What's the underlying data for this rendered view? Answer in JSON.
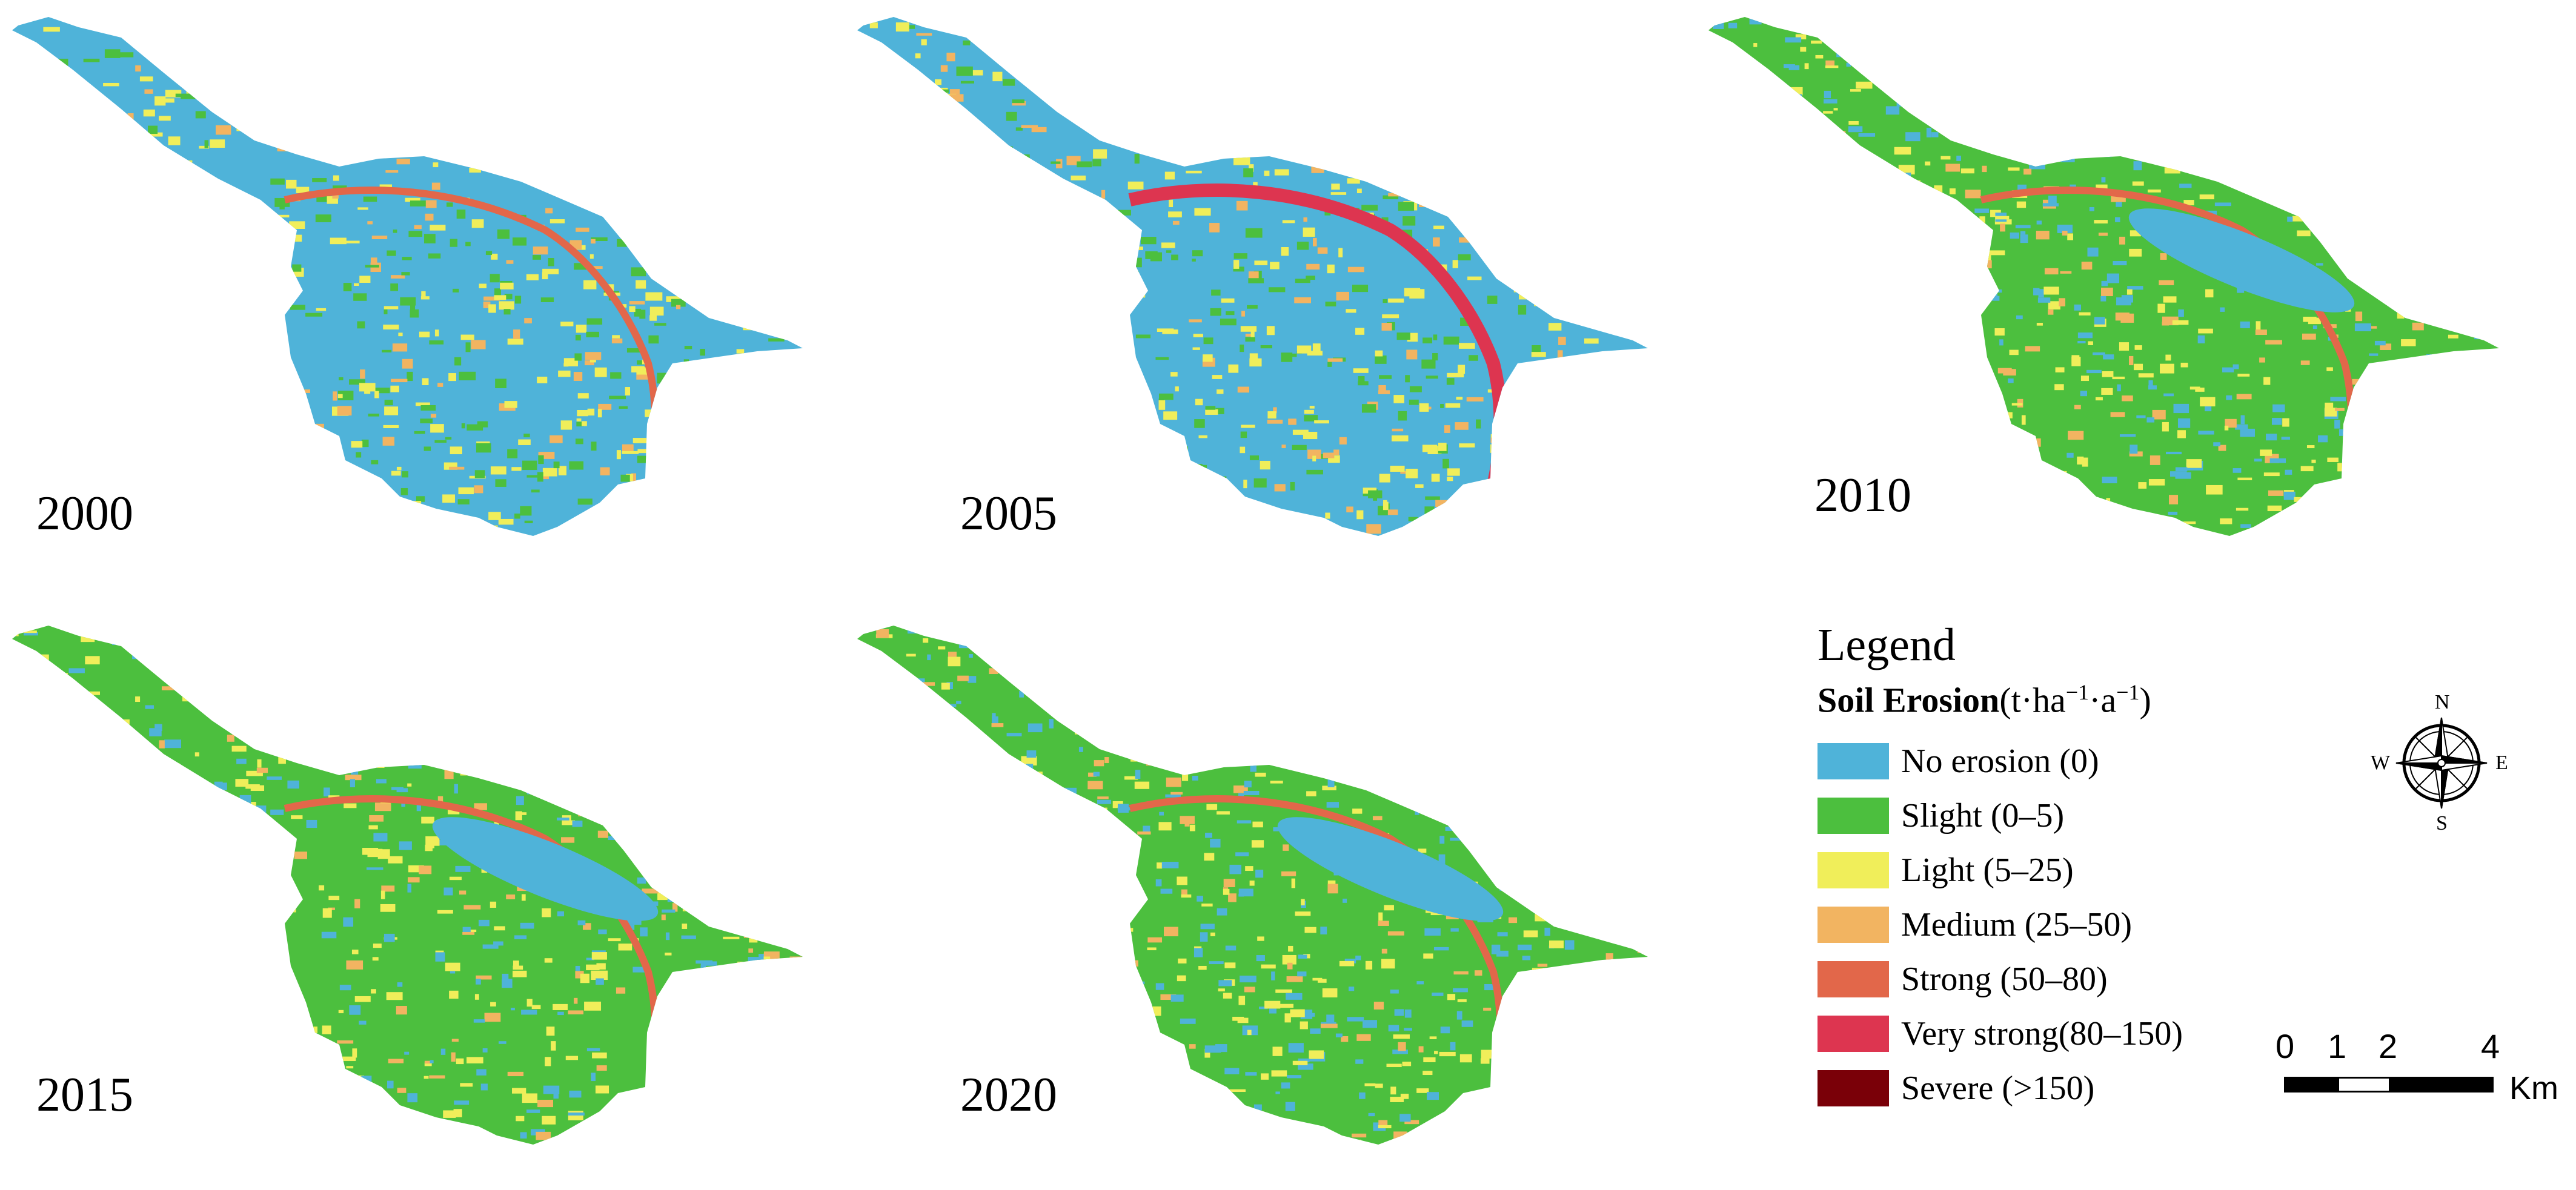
{
  "panels": [
    {
      "year": "2000",
      "dominant": "no-erosion"
    },
    {
      "year": "2005",
      "dominant": "no-erosion"
    },
    {
      "year": "2010",
      "dominant": "slight"
    },
    {
      "year": "2015",
      "dominant": "slight"
    },
    {
      "year": "2020",
      "dominant": "slight"
    }
  ],
  "legend": {
    "title": "Legend",
    "heading_bold": "Soil Erosion",
    "heading_unit_open": "(t·ha",
    "heading_sup1": "−1",
    "heading_unit_mid": "·a",
    "heading_sup2": "−1",
    "heading_unit_close": ")",
    "classes": [
      {
        "label": "No erosion (0)",
        "color": "#4fb3d9"
      },
      {
        "label": "Slight (0–5)",
        "color": "#4cbf3e"
      },
      {
        "label": "Light (5–25)",
        "color": "#f0ee5a"
      },
      {
        "label": "Medium (25–50)",
        "color": "#f2b461"
      },
      {
        "label": "Strong (50–80)",
        "color": "#e2674a"
      },
      {
        "label": "Very strong(80–150)",
        "color": "#dd3550"
      },
      {
        "label": "Severe (>150)",
        "color": "#7a0008"
      }
    ]
  },
  "compass": {
    "n": "N",
    "s": "S",
    "e": "E",
    "w": "W"
  },
  "scalebar": {
    "ticks": [
      "0",
      "1",
      "2",
      "4"
    ],
    "unit": "Km"
  }
}
